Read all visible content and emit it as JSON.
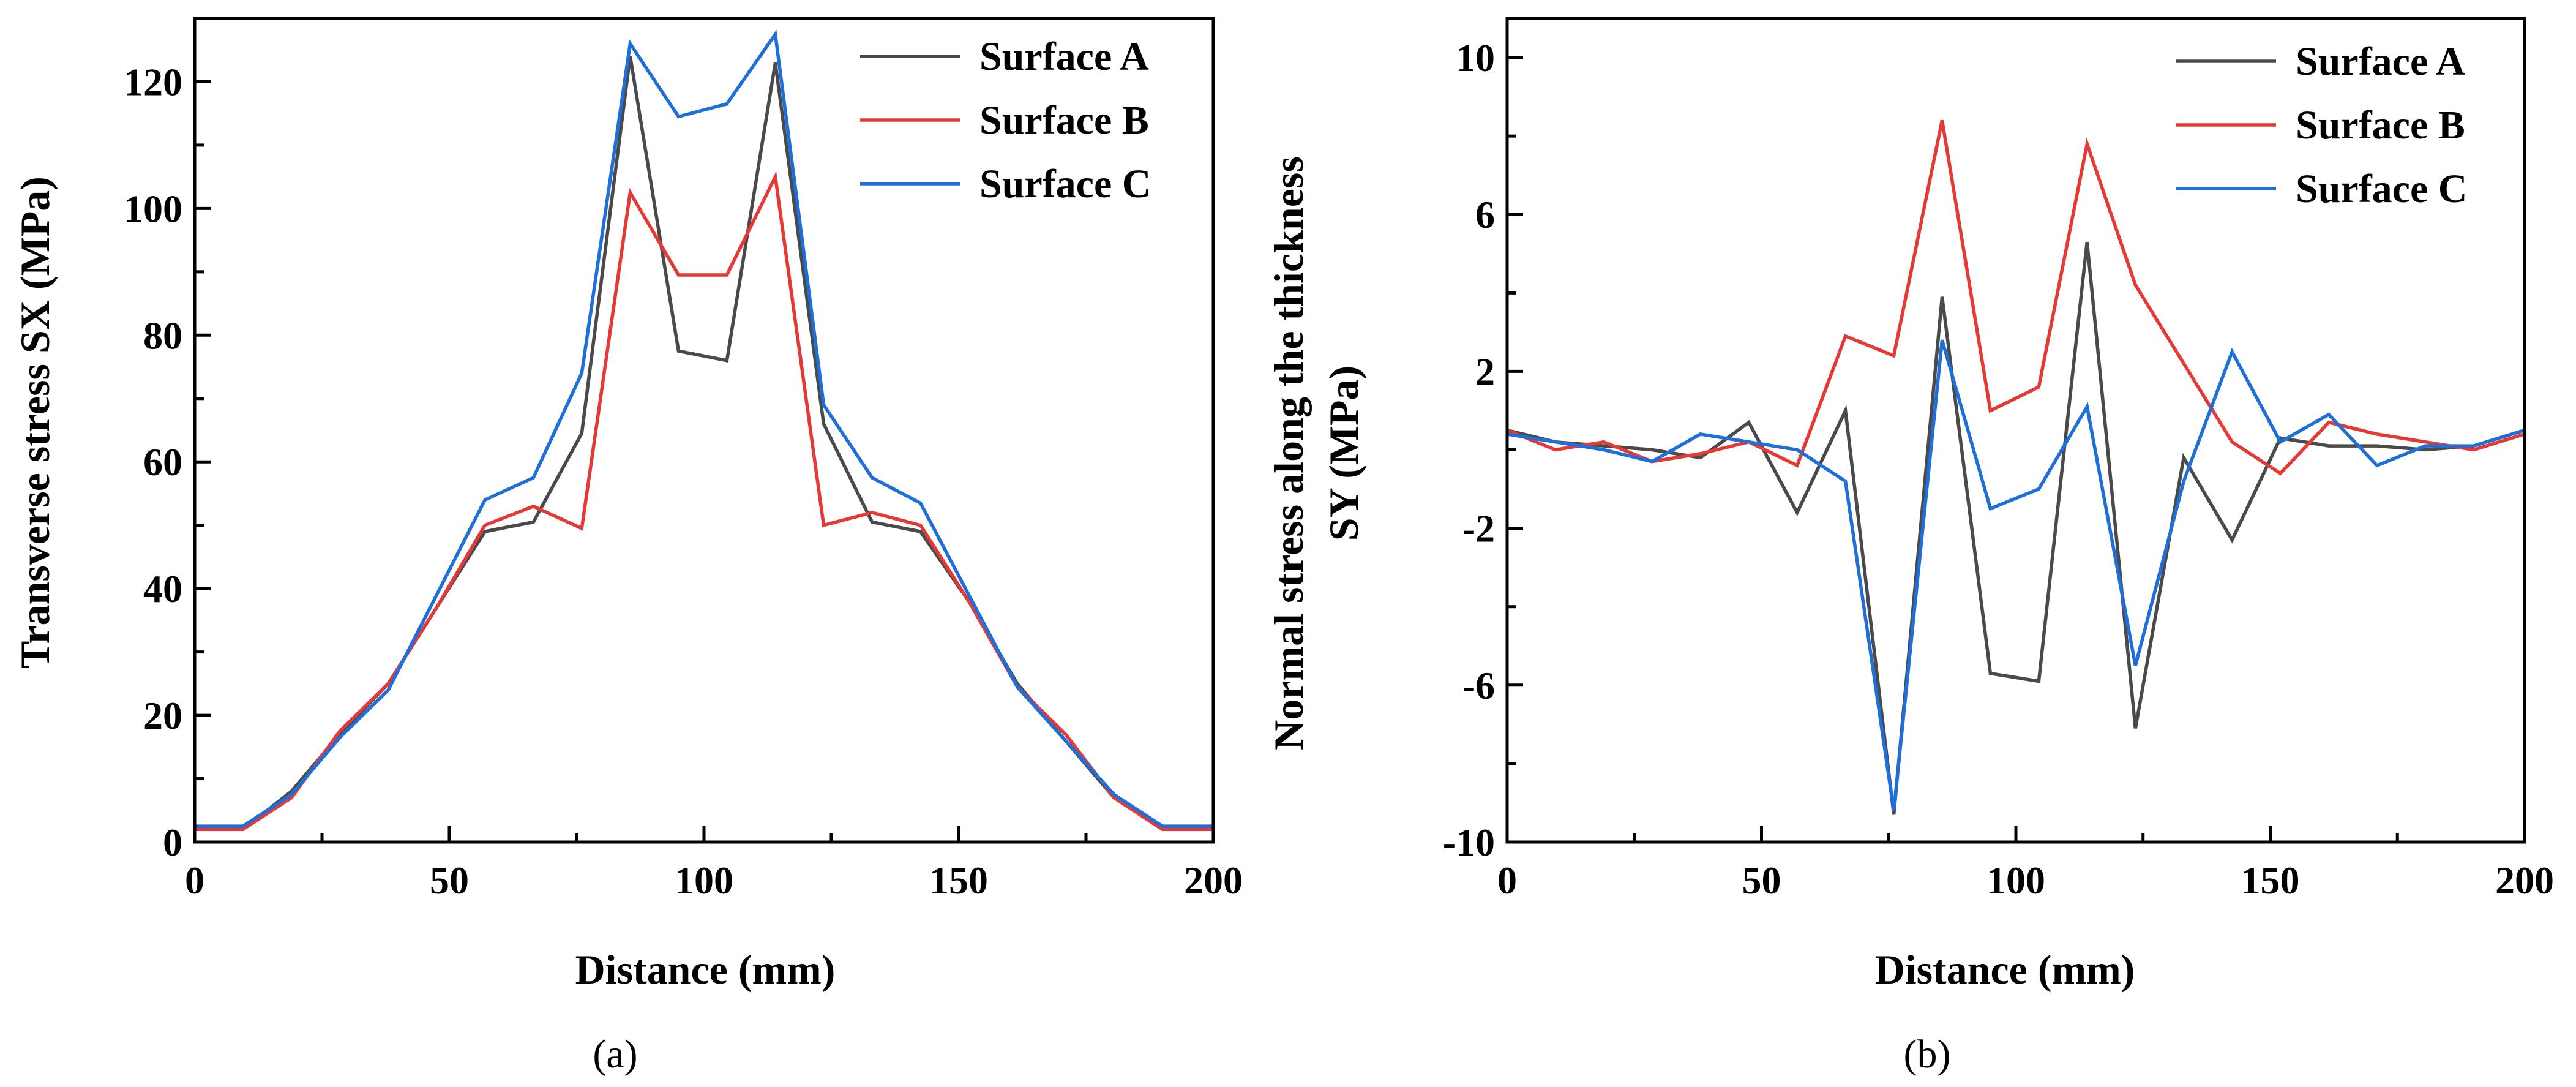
{
  "chart_data": [
    {
      "type": "line",
      "panel": "a",
      "caption": "(a)",
      "xlabel": "Distance (mm)",
      "ylabel": "Transverse stress SX (MPa)",
      "xlim": [
        0,
        200
      ],
      "ylim": [
        0,
        130
      ],
      "xticks": [
        0,
        50,
        100,
        150,
        200
      ],
      "yticks": [
        0,
        20,
        40,
        60,
        80,
        100,
        120
      ],
      "x": [
        0,
        9.5,
        19,
        28.5,
        38,
        47.5,
        57,
        66.5,
        76,
        85.5,
        95,
        104.5,
        114,
        123.5,
        133,
        142.5,
        152,
        161.5,
        171,
        180.5,
        190,
        200
      ],
      "legend_position": "top-right",
      "series": [
        {
          "name": "Surface A",
          "color": "#4a4a4a",
          "values": [
            2,
            2,
            8,
            17,
            25,
            37,
            49,
            50.5,
            64.5,
            124,
            77.5,
            76,
            123,
            66,
            50.5,
            49,
            38,
            25,
            16,
            7,
            2,
            2
          ]
        },
        {
          "name": "Surface B",
          "color": "#e53935",
          "values": [
            2,
            2,
            7,
            17.5,
            25,
            37,
            50,
            53,
            49.5,
            102.5,
            89.5,
            89.5,
            105,
            50,
            52,
            50,
            38,
            24.5,
            17,
            7,
            2,
            2
          ]
        },
        {
          "name": "Surface C",
          "color": "#1e6fd9",
          "values": [
            2.5,
            2.5,
            7.5,
            16.5,
            24,
            39,
            54,
            57.5,
            74,
            126,
            114.5,
            116.5,
            127.5,
            69,
            57.5,
            53.5,
            39,
            24.5,
            16,
            7.5,
            2.5,
            2.5
          ]
        }
      ]
    },
    {
      "type": "line",
      "panel": "b",
      "caption": "(b)",
      "xlabel": "Distance (mm)",
      "ylabel": [
        "Normal stress along the thickness",
        "SY (MPa)"
      ],
      "xlim": [
        0,
        200
      ],
      "ylim": [
        -10,
        11
      ],
      "xticks": [
        0,
        50,
        100,
        150,
        200
      ],
      "yticks": [
        -10,
        -6,
        -2,
        2,
        6,
        10
      ],
      "x": [
        0,
        9.5,
        19,
        28.5,
        38,
        47.5,
        57,
        66.5,
        76,
        85.5,
        95,
        104.5,
        114,
        123.5,
        133,
        142.5,
        152,
        161.5,
        171,
        180.5,
        190,
        200
      ],
      "legend_position": "top-right",
      "series": [
        {
          "name": "Surface A",
          "color": "#4a4a4a",
          "values": [
            0.5,
            0.2,
            0.1,
            0,
            -0.2,
            0.7,
            -1.6,
            1.0,
            -9.3,
            3.9,
            -5.7,
            -5.9,
            5.3,
            -7.1,
            -0.2,
            -2.3,
            0.3,
            0.1,
            0.1,
            0,
            0.1,
            0.5
          ]
        },
        {
          "name": "Surface B",
          "color": "#e53935",
          "values": [
            0.5,
            0,
            0.2,
            -0.3,
            -0.1,
            0.2,
            -0.4,
            2.9,
            2.4,
            8.4,
            1.0,
            1.6,
            7.8,
            4.2,
            2.2,
            0.2,
            -0.6,
            0.7,
            0.4,
            0.2,
            0,
            0.4
          ]
        },
        {
          "name": "Surface C",
          "color": "#1e6fd9",
          "values": [
            0.4,
            0.2,
            0,
            -0.3,
            0.4,
            0.2,
            0,
            -0.8,
            -9.2,
            2.8,
            -1.5,
            -1.0,
            1.1,
            -5.5,
            -0.8,
            2.5,
            0.2,
            0.9,
            -0.4,
            0.1,
            0.1,
            0.5
          ]
        }
      ]
    }
  ]
}
